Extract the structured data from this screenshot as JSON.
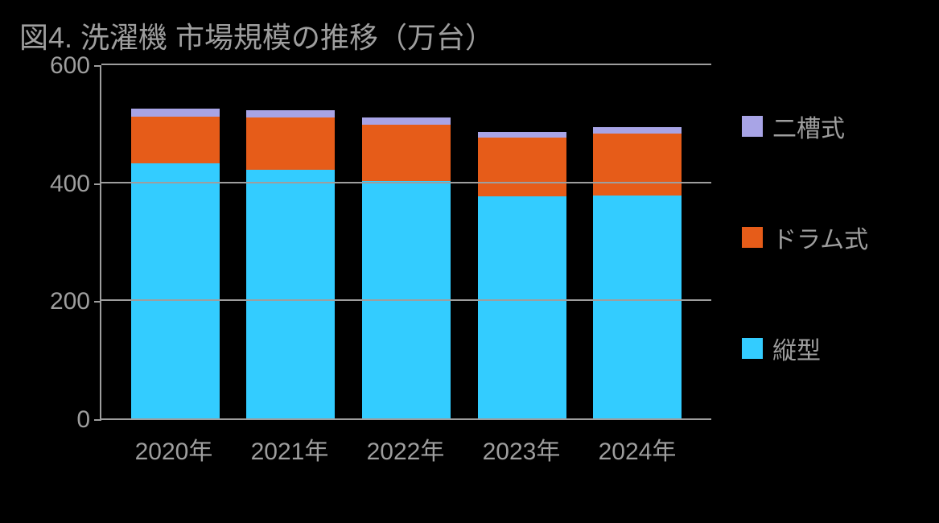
{
  "chart": {
    "type": "stacked-bar",
    "title": "図4. 洗濯機  市場規模の推移（万台）",
    "title_fontsize": 36,
    "title_color": "#9e9e9e",
    "background_color": "#000000",
    "axis_color": "#9e9e9e",
    "grid_color": "#9e9e9e",
    "label_color": "#9e9e9e",
    "label_fontsize": 30,
    "ylim": [
      0,
      600
    ],
    "ytick_step": 200,
    "yticks": [
      {
        "value": 0,
        "label": "0"
      },
      {
        "value": 200,
        "label": "200"
      },
      {
        "value": 400,
        "label": "400"
      },
      {
        "value": 600,
        "label": "600"
      }
    ],
    "bar_width_ratio": 0.72,
    "categories": [
      "2020年",
      "2021年",
      "2022年",
      "2023年",
      "2024年"
    ],
    "series": [
      {
        "key": "vertical",
        "name": "縦型",
        "color": "#33ccff"
      },
      {
        "key": "drum",
        "name": "ドラム式",
        "color": "#e65c19"
      },
      {
        "key": "twin",
        "name": "二槽式",
        "color": "#a8a4e6"
      }
    ],
    "legend_order": [
      "twin",
      "drum",
      "vertical"
    ],
    "data": [
      {
        "category": "2020年",
        "vertical": 432,
        "drum": 80,
        "twin": 13
      },
      {
        "category": "2021年",
        "vertical": 422,
        "drum": 88,
        "twin": 12
      },
      {
        "category": "2022年",
        "vertical": 402,
        "drum": 96,
        "twin": 12
      },
      {
        "category": "2023年",
        "vertical": 376,
        "drum": 100,
        "twin": 10
      },
      {
        "category": "2024年",
        "vertical": 378,
        "drum": 105,
        "twin": 10
      }
    ]
  }
}
